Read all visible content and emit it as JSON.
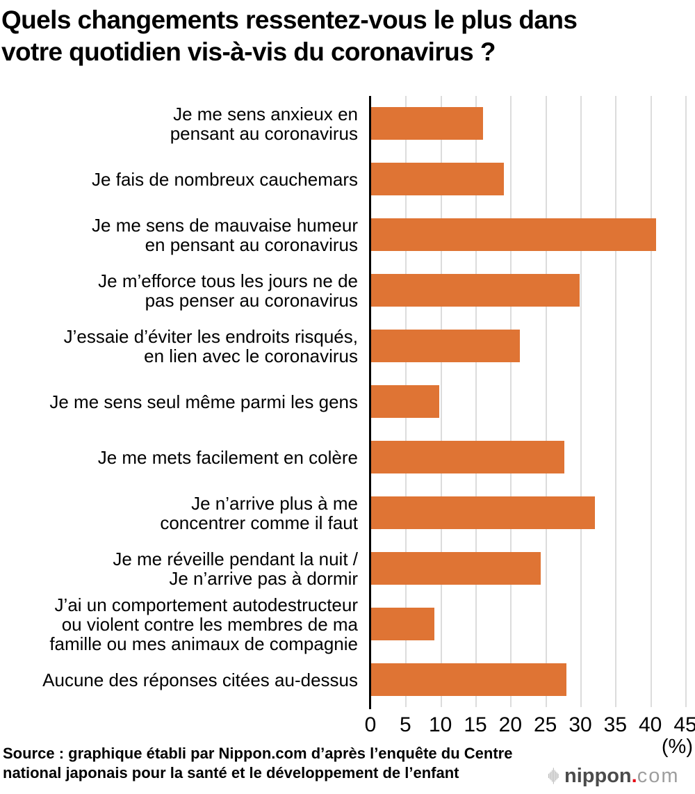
{
  "header": {
    "title_line1": "Quels changements ressentez-vous le plus dans",
    "title_line2": "votre quotidien vis-à-vis du coronavirus ?"
  },
  "chart_data": {
    "type": "bar",
    "orientation": "horizontal",
    "title": "Quels changements ressentez-vous le plus dans votre quotidien vis-à-vis du coronavirus ?",
    "categories": [
      "Je me sens anxieux en pensant au coronavirus",
      "Je fais de nombreux cauchemars",
      "Je me sens de mauvaise humeur en pensant au coronavirus",
      "Je m’efforce tous les jours ne de pas penser au coronavirus",
      "J’essaie d’éviter les endroits risqués, en lien avec le coronavirus",
      "Je me sens seul même parmi les gens",
      "Je me mets facilement en colère",
      "Je n’arrive plus à me concentrer comme il faut",
      "Je me réveille pendant la nuit / Je n’arrive pas à dormir",
      "J’ai un comportement autodestructeur ou violent contre les membres de ma famille ou mes animaux de compagnie",
      "Aucune des réponses citées au-dessus"
    ],
    "category_lines": [
      [
        "Je me sens anxieux en",
        "pensant au coronavirus"
      ],
      [
        "Je fais de nombreux cauchemars"
      ],
      [
        "Je me sens de mauvaise humeur",
        "en pensant au coronavirus"
      ],
      [
        "Je m’efforce tous les jours ne de",
        "pas penser au coronavirus"
      ],
      [
        "J’essaie d’éviter les endroits risqués,",
        "en lien avec le coronavirus"
      ],
      [
        "Je me sens seul même parmi les gens"
      ],
      [
        "Je me mets facilement en colère"
      ],
      [
        "Je n’arrive plus à me",
        "concentrer comme il faut"
      ],
      [
        "Je me réveille pendant la nuit /",
        "Je n’arrive pas à dormir"
      ],
      [
        "J’ai un comportement autodestructeur",
        "ou violent contre les membres de ma",
        "famille ou mes animaux de compagnie"
      ],
      [
        "Aucune des réponses citées au-dessus"
      ]
    ],
    "values": [
      16,
      19,
      40.7,
      29.8,
      21.3,
      9.7,
      27.6,
      32,
      24.2,
      9,
      27.9
    ],
    "xlabel": "(%)",
    "xlim": [
      0,
      45
    ],
    "xticks": [
      0,
      5,
      10,
      15,
      20,
      25,
      30,
      35,
      40,
      45
    ],
    "grid": true,
    "legend": false,
    "bar_color": "#df7434",
    "gridline_color": "#dcdcdc",
    "axis_color": "#000000"
  },
  "footer": {
    "source_line1": "Source : graphique établi par Nippon.com d’après l’enquête du Centre",
    "source_line2": "national japonais pour la santé et le développement de l’enfant",
    "logo": {
      "brand": "nippon",
      "dot": ".",
      "tld": "com",
      "brand_color": "#4b4b4b",
      "dot_color": "#e60012",
      "tld_color": "#9e9e9e",
      "icon_color": "#b9b9b9"
    }
  }
}
